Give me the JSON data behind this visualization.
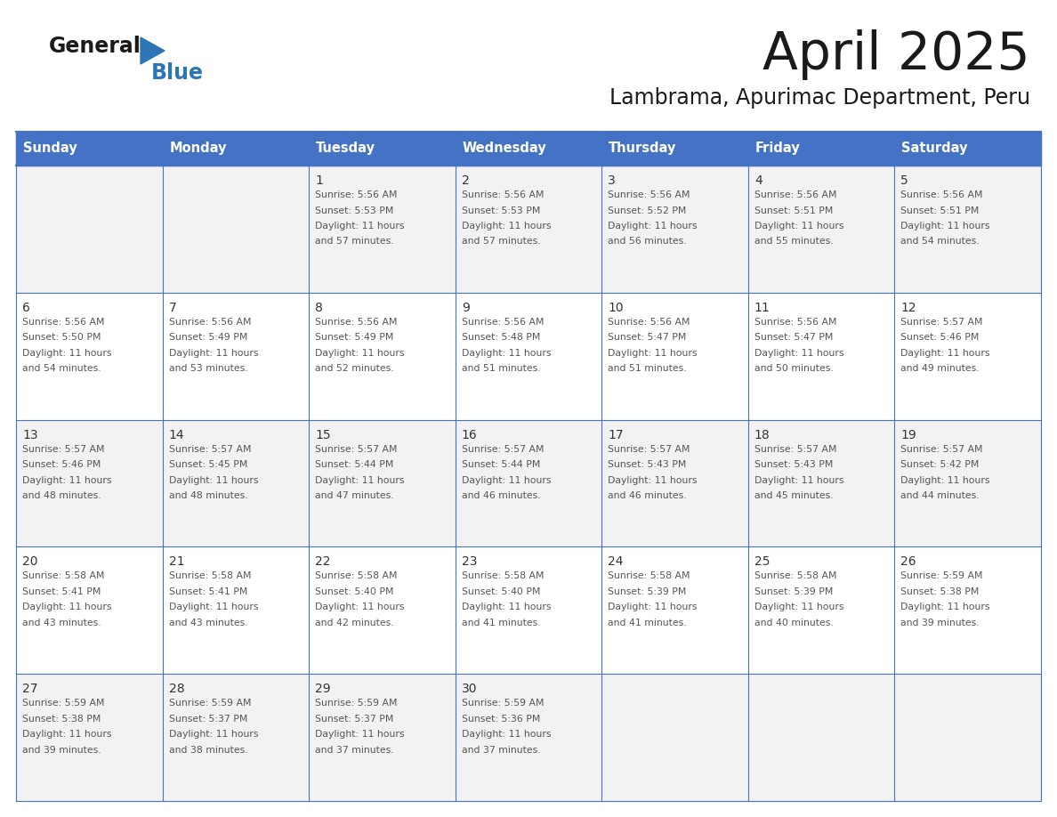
{
  "title": "April 2025",
  "subtitle": "Lambrama, Apurimac Department, Peru",
  "days_of_week": [
    "Sunday",
    "Monday",
    "Tuesday",
    "Wednesday",
    "Thursday",
    "Friday",
    "Saturday"
  ],
  "header_bg": "#4472C4",
  "header_text": "#FFFFFF",
  "cell_bg_white": "#FFFFFF",
  "cell_bg_gray": "#F2F2F2",
  "border_color": "#4472C4",
  "text_color": "#555555",
  "day_number_color": "#333333",
  "logo_dark_color": "#1a1a1a",
  "logo_blue_color": "#2E75B6",
  "calendar_data": [
    {
      "day": 1,
      "col": 2,
      "row": 0,
      "sunrise": "5:56 AM",
      "sunset": "5:53 PM",
      "daylight_hours": 11,
      "daylight_minutes": 57
    },
    {
      "day": 2,
      "col": 3,
      "row": 0,
      "sunrise": "5:56 AM",
      "sunset": "5:53 PM",
      "daylight_hours": 11,
      "daylight_minutes": 57
    },
    {
      "day": 3,
      "col": 4,
      "row": 0,
      "sunrise": "5:56 AM",
      "sunset": "5:52 PM",
      "daylight_hours": 11,
      "daylight_minutes": 56
    },
    {
      "day": 4,
      "col": 5,
      "row": 0,
      "sunrise": "5:56 AM",
      "sunset": "5:51 PM",
      "daylight_hours": 11,
      "daylight_minutes": 55
    },
    {
      "day": 5,
      "col": 6,
      "row": 0,
      "sunrise": "5:56 AM",
      "sunset": "5:51 PM",
      "daylight_hours": 11,
      "daylight_minutes": 54
    },
    {
      "day": 6,
      "col": 0,
      "row": 1,
      "sunrise": "5:56 AM",
      "sunset": "5:50 PM",
      "daylight_hours": 11,
      "daylight_minutes": 54
    },
    {
      "day": 7,
      "col": 1,
      "row": 1,
      "sunrise": "5:56 AM",
      "sunset": "5:49 PM",
      "daylight_hours": 11,
      "daylight_minutes": 53
    },
    {
      "day": 8,
      "col": 2,
      "row": 1,
      "sunrise": "5:56 AM",
      "sunset": "5:49 PM",
      "daylight_hours": 11,
      "daylight_minutes": 52
    },
    {
      "day": 9,
      "col": 3,
      "row": 1,
      "sunrise": "5:56 AM",
      "sunset": "5:48 PM",
      "daylight_hours": 11,
      "daylight_minutes": 51
    },
    {
      "day": 10,
      "col": 4,
      "row": 1,
      "sunrise": "5:56 AM",
      "sunset": "5:47 PM",
      "daylight_hours": 11,
      "daylight_minutes": 51
    },
    {
      "day": 11,
      "col": 5,
      "row": 1,
      "sunrise": "5:56 AM",
      "sunset": "5:47 PM",
      "daylight_hours": 11,
      "daylight_minutes": 50
    },
    {
      "day": 12,
      "col": 6,
      "row": 1,
      "sunrise": "5:57 AM",
      "sunset": "5:46 PM",
      "daylight_hours": 11,
      "daylight_minutes": 49
    },
    {
      "day": 13,
      "col": 0,
      "row": 2,
      "sunrise": "5:57 AM",
      "sunset": "5:46 PM",
      "daylight_hours": 11,
      "daylight_minutes": 48
    },
    {
      "day": 14,
      "col": 1,
      "row": 2,
      "sunrise": "5:57 AM",
      "sunset": "5:45 PM",
      "daylight_hours": 11,
      "daylight_minutes": 48
    },
    {
      "day": 15,
      "col": 2,
      "row": 2,
      "sunrise": "5:57 AM",
      "sunset": "5:44 PM",
      "daylight_hours": 11,
      "daylight_minutes": 47
    },
    {
      "day": 16,
      "col": 3,
      "row": 2,
      "sunrise": "5:57 AM",
      "sunset": "5:44 PM",
      "daylight_hours": 11,
      "daylight_minutes": 46
    },
    {
      "day": 17,
      "col": 4,
      "row": 2,
      "sunrise": "5:57 AM",
      "sunset": "5:43 PM",
      "daylight_hours": 11,
      "daylight_minutes": 46
    },
    {
      "day": 18,
      "col": 5,
      "row": 2,
      "sunrise": "5:57 AM",
      "sunset": "5:43 PM",
      "daylight_hours": 11,
      "daylight_minutes": 45
    },
    {
      "day": 19,
      "col": 6,
      "row": 2,
      "sunrise": "5:57 AM",
      "sunset": "5:42 PM",
      "daylight_hours": 11,
      "daylight_minutes": 44
    },
    {
      "day": 20,
      "col": 0,
      "row": 3,
      "sunrise": "5:58 AM",
      "sunset": "5:41 PM",
      "daylight_hours": 11,
      "daylight_minutes": 43
    },
    {
      "day": 21,
      "col": 1,
      "row": 3,
      "sunrise": "5:58 AM",
      "sunset": "5:41 PM",
      "daylight_hours": 11,
      "daylight_minutes": 43
    },
    {
      "day": 22,
      "col": 2,
      "row": 3,
      "sunrise": "5:58 AM",
      "sunset": "5:40 PM",
      "daylight_hours": 11,
      "daylight_minutes": 42
    },
    {
      "day": 23,
      "col": 3,
      "row": 3,
      "sunrise": "5:58 AM",
      "sunset": "5:40 PM",
      "daylight_hours": 11,
      "daylight_minutes": 41
    },
    {
      "day": 24,
      "col": 4,
      "row": 3,
      "sunrise": "5:58 AM",
      "sunset": "5:39 PM",
      "daylight_hours": 11,
      "daylight_minutes": 41
    },
    {
      "day": 25,
      "col": 5,
      "row": 3,
      "sunrise": "5:58 AM",
      "sunset": "5:39 PM",
      "daylight_hours": 11,
      "daylight_minutes": 40
    },
    {
      "day": 26,
      "col": 6,
      "row": 3,
      "sunrise": "5:59 AM",
      "sunset": "5:38 PM",
      "daylight_hours": 11,
      "daylight_minutes": 39
    },
    {
      "day": 27,
      "col": 0,
      "row": 4,
      "sunrise": "5:59 AM",
      "sunset": "5:38 PM",
      "daylight_hours": 11,
      "daylight_minutes": 39
    },
    {
      "day": 28,
      "col": 1,
      "row": 4,
      "sunrise": "5:59 AM",
      "sunset": "5:37 PM",
      "daylight_hours": 11,
      "daylight_minutes": 38
    },
    {
      "day": 29,
      "col": 2,
      "row": 4,
      "sunrise": "5:59 AM",
      "sunset": "5:37 PM",
      "daylight_hours": 11,
      "daylight_minutes": 37
    },
    {
      "day": 30,
      "col": 3,
      "row": 4,
      "sunrise": "5:59 AM",
      "sunset": "5:36 PM",
      "daylight_hours": 11,
      "daylight_minutes": 37
    }
  ]
}
